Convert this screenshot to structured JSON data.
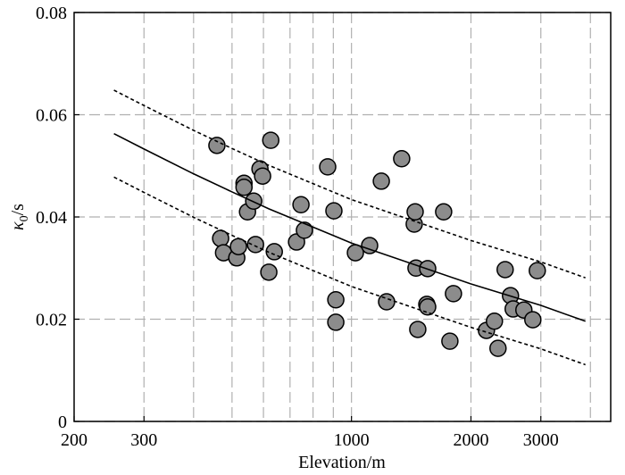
{
  "chart_data": {
    "type": "scatter",
    "xlabel": "Elevation/m",
    "ylabel": [
      "κ",
      "0",
      "/s"
    ],
    "xscale": "log",
    "xlim": [
      200,
      4500
    ],
    "ylim": [
      0,
      0.08
    ],
    "xticks": [
      200,
      300,
      1000,
      2000,
      3000
    ],
    "xgrid": [
      300,
      400,
      500,
      600,
      700,
      800,
      900,
      1000,
      2000,
      3000,
      4000
    ],
    "yticks": [
      0,
      0.02,
      0.04,
      0.06,
      0.08
    ],
    "grid": true,
    "series": [
      {
        "style": "markers",
        "color": "#8c8c8c",
        "x": [
          458,
          468,
          476,
          514,
          519,
          536,
          536,
          547,
          567,
          573,
          588,
          597,
          619,
          626,
          639,
          727,
          746,
          761,
          871,
          903,
          913,
          913,
          1023,
          1111,
          1189,
          1226,
          1338,
          1439,
          1447,
          1454,
          1469,
          1548,
          1556,
          1556,
          1707,
          1770,
          1807,
          2188,
          2292,
          2340,
          2439,
          2516,
          2555,
          2719,
          2864,
          2939
        ],
        "values": [
          0.054,
          0.0358,
          0.033,
          0.032,
          0.0342,
          0.0466,
          0.0458,
          0.041,
          0.0431,
          0.0346,
          0.0494,
          0.048,
          0.0292,
          0.055,
          0.0332,
          0.0351,
          0.0424,
          0.0374,
          0.0498,
          0.0412,
          0.0238,
          0.0194,
          0.033,
          0.0344,
          0.047,
          0.0234,
          0.0514,
          0.0386,
          0.041,
          0.03,
          0.018,
          0.0229,
          0.0299,
          0.0224,
          0.041,
          0.0157,
          0.025,
          0.0178,
          0.0196,
          0.0143,
          0.0297,
          0.0246,
          0.022,
          0.0218,
          0.0199,
          0.0295
        ]
      },
      {
        "style": "solid",
        "color": "#000000",
        "x": [
          252,
          300,
          401,
          500,
          619,
          1000,
          2000,
          3000,
          3886
        ],
        "values": [
          0.0563,
          0.0533,
          0.0484,
          0.0449,
          0.0416,
          0.0349,
          0.0269,
          0.0227,
          0.0196
        ]
      },
      {
        "style": "dashed",
        "color": "#000000",
        "x": [
          252,
          300,
          401,
          500,
          619,
          1000,
          2000,
          3000,
          3886
        ],
        "values": [
          0.0648,
          0.0618,
          0.0569,
          0.0534,
          0.0501,
          0.0434,
          0.0354,
          0.0312,
          0.0281
        ]
      },
      {
        "style": "dashed",
        "color": "#000000",
        "x": [
          252,
          300,
          401,
          500,
          619,
          1000,
          2000,
          3000,
          3886
        ],
        "values": [
          0.0478,
          0.0448,
          0.0399,
          0.0364,
          0.0331,
          0.0264,
          0.0184,
          0.0142,
          0.0111
        ]
      }
    ]
  }
}
